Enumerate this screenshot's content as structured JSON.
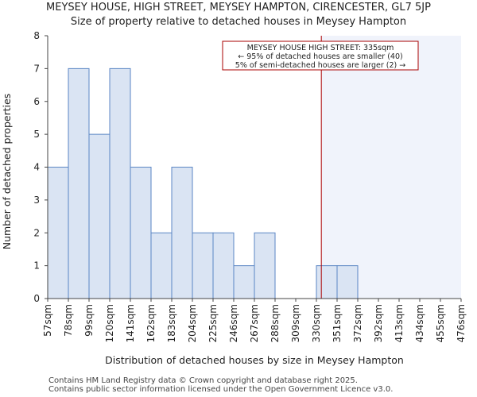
{
  "chart_data": {
    "type": "bar",
    "title": "MEYSEY HOUSE, HIGH STREET, MEYSEY HAMPTON, CIRENCESTER, GL7 5JP",
    "subtitle": "Size of property relative to detached houses in Meysey Hampton",
    "xlabel": "Distribution of detached houses by size in Meysey Hampton",
    "ylabel": "Number of detached properties",
    "x_tick_labels": [
      "57sqm",
      "78sqm",
      "99sqm",
      "120sqm",
      "141sqm",
      "162sqm",
      "183sqm",
      "204sqm",
      "225sqm",
      "246sqm",
      "267sqm",
      "288sqm",
      "309sqm",
      "330sqm",
      "351sqm",
      "372sqm",
      "392sqm",
      "413sqm",
      "434sqm",
      "455sqm",
      "476sqm"
    ],
    "bins": [
      {
        "from": "57sqm",
        "to": "78sqm",
        "count": 4
      },
      {
        "from": "78sqm",
        "to": "99sqm",
        "count": 7
      },
      {
        "from": "99sqm",
        "to": "120sqm",
        "count": 5
      },
      {
        "from": "120sqm",
        "to": "141sqm",
        "count": 7
      },
      {
        "from": "141sqm",
        "to": "162sqm",
        "count": 4
      },
      {
        "from": "162sqm",
        "to": "183sqm",
        "count": 2
      },
      {
        "from": "183sqm",
        "to": "204sqm",
        "count": 4
      },
      {
        "from": "204sqm",
        "to": "225sqm",
        "count": 2
      },
      {
        "from": "225sqm",
        "to": "246sqm",
        "count": 2
      },
      {
        "from": "246sqm",
        "to": "267sqm",
        "count": 1
      },
      {
        "from": "267sqm",
        "to": "288sqm",
        "count": 2
      },
      {
        "from": "288sqm",
        "to": "309sqm",
        "count": 0
      },
      {
        "from": "309sqm",
        "to": "330sqm",
        "count": 0
      },
      {
        "from": "330sqm",
        "to": "351sqm",
        "count": 1
      },
      {
        "from": "351sqm",
        "to": "372sqm",
        "count": 1
      },
      {
        "from": "372sqm",
        "to": "392sqm",
        "count": 0
      },
      {
        "from": "392sqm",
        "to": "413sqm",
        "count": 0
      },
      {
        "from": "413sqm",
        "to": "434sqm",
        "count": 0
      },
      {
        "from": "434sqm",
        "to": "455sqm",
        "count": 0
      },
      {
        "from": "455sqm",
        "to": "476sqm",
        "count": 0
      }
    ],
    "ylim": [
      0,
      8
    ],
    "y_ticks": [
      0,
      1,
      2,
      3,
      4,
      5,
      6,
      7,
      8
    ],
    "grid": false,
    "marker": {
      "value": 335,
      "unit": "sqm",
      "color": "#aa0000"
    },
    "annotation": {
      "lines": [
        "MEYSEY HOUSE HIGH STREET: 335sqm",
        "← 95% of detached houses are smaller (40)",
        "5% of semi-detached houses are larger (2) →"
      ],
      "border_color": "#aa0000"
    },
    "colors": {
      "bar_fill": "#dae4f3",
      "bar_stroke": "#5b86c4",
      "highlight_region": "#f0f3fb",
      "axis": "#444444"
    }
  },
  "footer": {
    "line1": "Contains HM Land Registry data © Crown copyright and database right 2025.",
    "line2": "Contains public sector information licensed under the Open Government Licence v3.0."
  }
}
